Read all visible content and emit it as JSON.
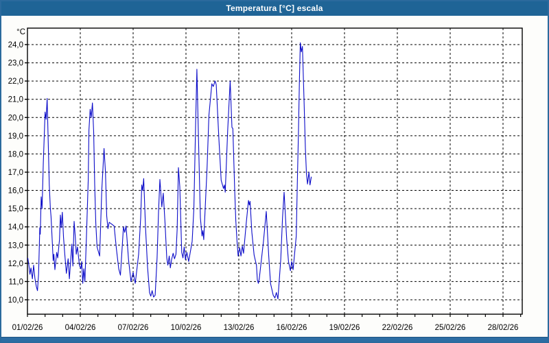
{
  "window": {
    "title": "Temperatura [°C] escala",
    "title_bar_color": "#1f6496",
    "border_color": "#2b6a9d"
  },
  "chart_data": {
    "type": "line",
    "title": "Temperatura [°C] escala",
    "ylabel": "°C",
    "xlabel": "",
    "legend": "none",
    "grid": "dashed black, horizontal every 1°C, vertical every 3 days",
    "series_name": "Temperatura",
    "series_color": "#0a0ac8",
    "grid_color": "#000000",
    "plot_bg_color": "#ffffff",
    "xlim_days": [
      1,
      29.1
    ],
    "ylim": [
      9.2,
      24.9
    ],
    "x_tick_days": [
      1,
      4,
      7,
      10,
      13,
      16,
      19,
      22,
      25,
      28
    ],
    "x_tick_labels": [
      "01/02/26",
      "04/02/26",
      "07/02/26",
      "10/02/26",
      "13/02/26",
      "16/02/26",
      "19/02/26",
      "22/02/26",
      "25/02/26",
      "28/02/26"
    ],
    "y_tick_values": [
      24,
      23,
      22,
      21,
      20,
      19,
      18,
      17,
      16,
      15,
      14,
      13,
      12,
      11,
      10
    ],
    "y_tick_labels": [
      "24,0",
      "23,0",
      "22,0",
      "21,0",
      "20,0",
      "19,0",
      "18,0",
      "17,0",
      "16,0",
      "15,0",
      "14,0",
      "13,0",
      "12,0",
      "11,0",
      "10,0"
    ],
    "points": [
      [
        1.02,
        12.3
      ],
      [
        1.08,
        11.9
      ],
      [
        1.14,
        11.4
      ],
      [
        1.2,
        11.75
      ],
      [
        1.28,
        11.15
      ],
      [
        1.35,
        11.9
      ],
      [
        1.42,
        11.2
      ],
      [
        1.5,
        10.75
      ],
      [
        1.57,
        10.5
      ],
      [
        1.63,
        11.4
      ],
      [
        1.7,
        13.95
      ],
      [
        1.73,
        13.6
      ],
      [
        1.78,
        15.65
      ],
      [
        1.83,
        15.0
      ],
      [
        1.9,
        17.5
      ],
      [
        2.0,
        20.3
      ],
      [
        2.06,
        19.9
      ],
      [
        2.12,
        21.05
      ],
      [
        2.18,
        18.6
      ],
      [
        2.24,
        16.3
      ],
      [
        2.3,
        15.0
      ],
      [
        2.34,
        14.55
      ],
      [
        2.4,
        13.4
      ],
      [
        2.46,
        12.15
      ],
      [
        2.5,
        12.5
      ],
      [
        2.56,
        11.65
      ],
      [
        2.66,
        12.6
      ],
      [
        2.72,
        12.3
      ],
      [
        2.82,
        13.3
      ],
      [
        2.87,
        14.65
      ],
      [
        2.92,
        13.95
      ],
      [
        2.98,
        14.8
      ],
      [
        3.05,
        13.4
      ],
      [
        3.12,
        12.5
      ],
      [
        3.21,
        11.45
      ],
      [
        3.31,
        12.25
      ],
      [
        3.38,
        11.15
      ],
      [
        3.52,
        13.05
      ],
      [
        3.58,
        11.85
      ],
      [
        3.65,
        14.3
      ],
      [
        3.72,
        13.4
      ],
      [
        3.77,
        12.5
      ],
      [
        3.84,
        12.9
      ],
      [
        3.95,
        11.9
      ],
      [
        4.03,
        11.7
      ],
      [
        4.08,
        12.1
      ],
      [
        4.14,
        10.9
      ],
      [
        4.2,
        11.7
      ],
      [
        4.26,
        11.0
      ],
      [
        4.35,
        13.5
      ],
      [
        4.45,
        16.6
      ],
      [
        4.49,
        19.3
      ],
      [
        4.56,
        20.45
      ],
      [
        4.62,
        20.0
      ],
      [
        4.69,
        20.8
      ],
      [
        4.76,
        19.2
      ],
      [
        4.82,
        16.3
      ],
      [
        4.88,
        14.2
      ],
      [
        4.95,
        12.9
      ],
      [
        5.1,
        12.4
      ],
      [
        5.22,
        16.0
      ],
      [
        5.35,
        18.3
      ],
      [
        5.43,
        17.0
      ],
      [
        5.5,
        14.6
      ],
      [
        5.57,
        13.9
      ],
      [
        5.64,
        14.25
      ],
      [
        5.78,
        14.15
      ],
      [
        5.92,
        14.05
      ],
      [
        6.05,
        12.8
      ],
      [
        6.18,
        11.7
      ],
      [
        6.28,
        11.35
      ],
      [
        6.45,
        14.0
      ],
      [
        6.52,
        13.7
      ],
      [
        6.6,
        14.05
      ],
      [
        6.74,
        12.2
      ],
      [
        6.88,
        11.0
      ],
      [
        7.0,
        11.5
      ],
      [
        7.12,
        10.9
      ],
      [
        7.31,
        12.5
      ],
      [
        7.43,
        14.5
      ],
      [
        7.49,
        16.3
      ],
      [
        7.54,
        16.0
      ],
      [
        7.6,
        16.65
      ],
      [
        7.7,
        14.0
      ],
      [
        7.82,
        11.8
      ],
      [
        7.93,
        10.4
      ],
      [
        8.0,
        10.2
      ],
      [
        8.08,
        10.5
      ],
      [
        8.16,
        10.15
      ],
      [
        8.25,
        10.25
      ],
      [
        8.36,
        12.3
      ],
      [
        8.44,
        14.8
      ],
      [
        8.52,
        16.6
      ],
      [
        8.63,
        15.1
      ],
      [
        8.71,
        15.85
      ],
      [
        8.81,
        14.2
      ],
      [
        8.91,
        12.3
      ],
      [
        8.97,
        11.9
      ],
      [
        9.05,
        12.4
      ],
      [
        9.11,
        11.75
      ],
      [
        9.18,
        12.2
      ],
      [
        9.27,
        12.55
      ],
      [
        9.35,
        12.25
      ],
      [
        9.43,
        12.5
      ],
      [
        9.5,
        13.9
      ],
      [
        9.57,
        17.25
      ],
      [
        9.65,
        16.2
      ],
      [
        9.76,
        12.6
      ],
      [
        9.83,
        12.3
      ],
      [
        9.9,
        12.9
      ],
      [
        9.97,
        12.2
      ],
      [
        10.05,
        12.6
      ],
      [
        10.15,
        12.1
      ],
      [
        10.35,
        13.2
      ],
      [
        10.45,
        15.0
      ],
      [
        10.55,
        19.7
      ],
      [
        10.62,
        22.65
      ],
      [
        10.71,
        18.9
      ],
      [
        10.82,
        14.5
      ],
      [
        10.91,
        13.5
      ],
      [
        10.96,
        13.8
      ],
      [
        11.01,
        13.3
      ],
      [
        11.2,
        17.3
      ],
      [
        11.3,
        20.1
      ],
      [
        11.47,
        21.85
      ],
      [
        11.55,
        21.7
      ],
      [
        11.65,
        22.0
      ],
      [
        11.72,
        21.8
      ],
      [
        11.87,
        18.8
      ],
      [
        12.0,
        16.55
      ],
      [
        12.13,
        16.1
      ],
      [
        12.18,
        16.3
      ],
      [
        12.23,
        15.9
      ],
      [
        12.37,
        19.3
      ],
      [
        12.51,
        22.0
      ],
      [
        12.61,
        19.45
      ],
      [
        12.66,
        19.4
      ],
      [
        12.77,
        15.9
      ],
      [
        12.83,
        14.35
      ],
      [
        12.9,
        13.2
      ],
      [
        12.96,
        12.4
      ],
      [
        13.05,
        12.85
      ],
      [
        13.12,
        12.4
      ],
      [
        13.2,
        12.95
      ],
      [
        13.27,
        12.55
      ],
      [
        13.42,
        14.2
      ],
      [
        13.55,
        15.45
      ],
      [
        13.6,
        15.2
      ],
      [
        13.64,
        15.4
      ],
      [
        13.74,
        13.7
      ],
      [
        13.87,
        12.45
      ],
      [
        14.0,
        11.9
      ],
      [
        14.05,
        11.1
      ],
      [
        14.11,
        10.9
      ],
      [
        14.16,
        11.15
      ],
      [
        14.4,
        13.2
      ],
      [
        14.56,
        14.85
      ],
      [
        14.7,
        12.4
      ],
      [
        14.8,
        10.9
      ],
      [
        14.95,
        10.25
      ],
      [
        15.05,
        10.1
      ],
      [
        15.13,
        10.4
      ],
      [
        15.22,
        10.05
      ],
      [
        15.38,
        12.2
      ],
      [
        15.48,
        14.5
      ],
      [
        15.57,
        15.9
      ],
      [
        15.72,
        13.3
      ],
      [
        15.82,
        12.1
      ],
      [
        15.93,
        11.6
      ],
      [
        16.0,
        12.1
      ],
      [
        16.08,
        11.65
      ],
      [
        16.26,
        13.5
      ],
      [
        16.32,
        16.3
      ],
      [
        16.39,
        19.35
      ],
      [
        16.44,
        22.0
      ],
      [
        16.49,
        24.1
      ],
      [
        16.55,
        23.6
      ],
      [
        16.61,
        23.9
      ],
      [
        16.7,
        21.0
      ],
      [
        16.78,
        18.3
      ],
      [
        16.84,
        16.9
      ],
      [
        16.9,
        16.35
      ],
      [
        16.98,
        17.0
      ],
      [
        17.04,
        16.3
      ],
      [
        17.12,
        16.75
      ]
    ]
  }
}
